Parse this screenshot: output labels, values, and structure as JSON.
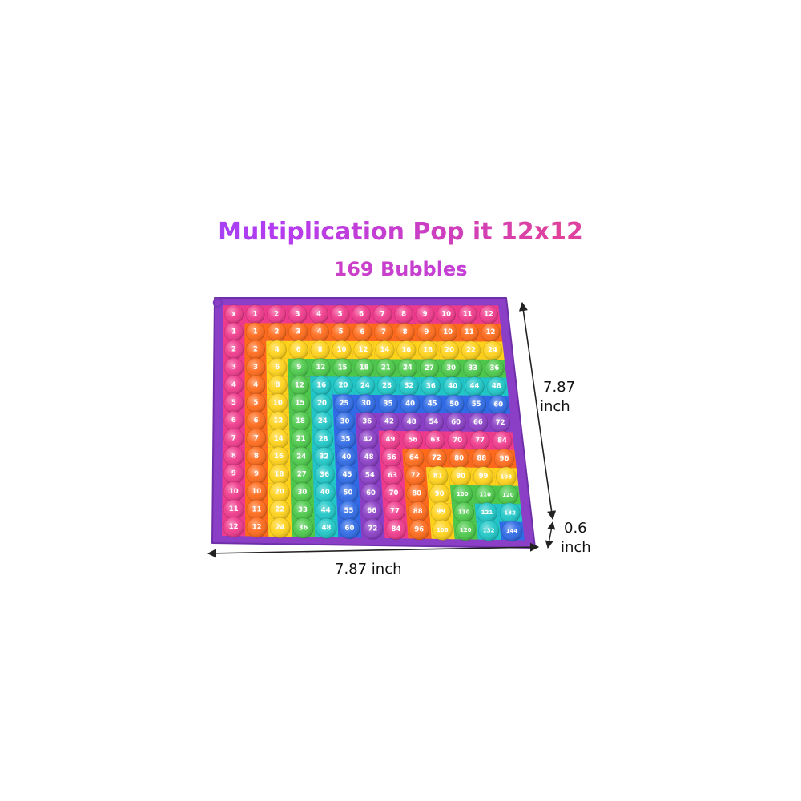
{
  "title": "Multiplication Pop it 12x12",
  "subtitle": "169 Bubbles",
  "dimensions": {
    "width_label": "7.87 inch",
    "height_value": "7.87",
    "height_unit": "inch",
    "depth_value": "0.6",
    "depth_unit": "inch"
  },
  "board": {
    "corner_symbol": "x",
    "frame_color": "#8a3fc6",
    "ring_colors": [
      "#f03a8c",
      "#ff6a1a",
      "#ffd21a",
      "#4cc94a",
      "#1fc7c7",
      "#2f6be6",
      "#8a3fc6",
      "#f03a8c",
      "#ff6a1a",
      "#ffd21a",
      "#4cc94a",
      "#1fc7c7",
      "#2f6be6"
    ],
    "grid": [
      [
        "x",
        "1",
        "2",
        "3",
        "4",
        "5",
        "6",
        "7",
        "8",
        "9",
        "10",
        "11",
        "12"
      ],
      [
        "1",
        "1",
        "2",
        "3",
        "4",
        "5",
        "6",
        "7",
        "8",
        "9",
        "10",
        "11",
        "12"
      ],
      [
        "2",
        "2",
        "4",
        "6",
        "8",
        "10",
        "12",
        "14",
        "16",
        "18",
        "20",
        "22",
        "24"
      ],
      [
        "3",
        "3",
        "6",
        "9",
        "12",
        "15",
        "18",
        "21",
        "24",
        "27",
        "30",
        "33",
        "36"
      ],
      [
        "4",
        "4",
        "8",
        "12",
        "16",
        "20",
        "24",
        "28",
        "32",
        "36",
        "40",
        "44",
        "48"
      ],
      [
        "5",
        "5",
        "10",
        "15",
        "20",
        "25",
        "30",
        "35",
        "40",
        "45",
        "50",
        "55",
        "60"
      ],
      [
        "6",
        "6",
        "12",
        "18",
        "24",
        "30",
        "36",
        "42",
        "48",
        "54",
        "60",
        "66",
        "72"
      ],
      [
        "7",
        "7",
        "14",
        "21",
        "28",
        "35",
        "42",
        "49",
        "56",
        "63",
        "70",
        "77",
        "84"
      ],
      [
        "8",
        "8",
        "16",
        "24",
        "32",
        "40",
        "48",
        "56",
        "64",
        "72",
        "80",
        "88",
        "96"
      ],
      [
        "9",
        "9",
        "18",
        "27",
        "36",
        "45",
        "54",
        "63",
        "72",
        "81",
        "90",
        "99",
        "108"
      ],
      [
        "10",
        "10",
        "20",
        "30",
        "40",
        "50",
        "60",
        "70",
        "80",
        "90",
        "100",
        "110",
        "120"
      ],
      [
        "11",
        "11",
        "22",
        "33",
        "44",
        "55",
        "66",
        "77",
        "88",
        "99",
        "110",
        "121",
        "132"
      ],
      [
        "12",
        "12",
        "24",
        "36",
        "48",
        "60",
        "72",
        "84",
        "96",
        "108",
        "120",
        "132",
        "144"
      ]
    ]
  }
}
